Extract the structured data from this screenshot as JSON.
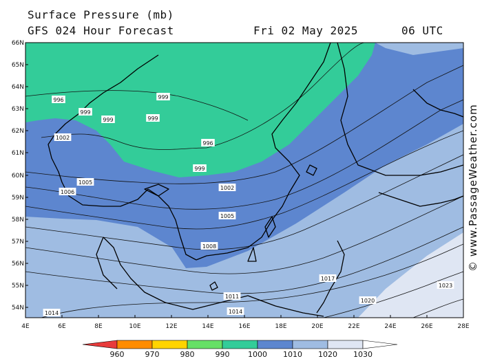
{
  "header": {
    "title": "Surface Pressure (mb)",
    "model": "GFS 024 Hour Forecast",
    "date": "Fri 02 May 2025",
    "time": "06 UTC"
  },
  "credit": "© www.PassageWeather.com",
  "axes": {
    "lat_labels": [
      "66N",
      "65N",
      "64N",
      "63N",
      "62N",
      "61N",
      "60N",
      "59N",
      "58N",
      "57N",
      "56N",
      "55N",
      "54N"
    ],
    "lon_labels": [
      "4E",
      "6E",
      "8E",
      "10E",
      "12E",
      "14E",
      "16E",
      "18E",
      "20E",
      "22E",
      "24E",
      "26E",
      "28E"
    ]
  },
  "isobar_labels": [
    "996",
    "999",
    "999",
    "999",
    "999",
    "1002",
    "996",
    "999",
    "1005",
    "1006",
    "1002",
    "1005",
    "1008",
    "1011",
    "1014",
    "1017",
    "1020",
    "1023",
    "1014"
  ],
  "colors": {
    "sea": "#6f9ad4",
    "band_990_1000": "#33cc99",
    "band_1000_1010": "#5d86cf",
    "band_1010_1020": "#9fbce2",
    "band_1020_1030": "#dfe6f3",
    "land_outline": "#000000"
  },
  "scale": {
    "labels": [
      "960",
      "970",
      "980",
      "990",
      "1000",
      "1010",
      "1020",
      "1030"
    ],
    "colors": [
      "#e83b3b",
      "#ff8c00",
      "#ffd400",
      "#66e066",
      "#33cc99",
      "#5d86cf",
      "#9fbce2",
      "#dfe6f3"
    ]
  }
}
